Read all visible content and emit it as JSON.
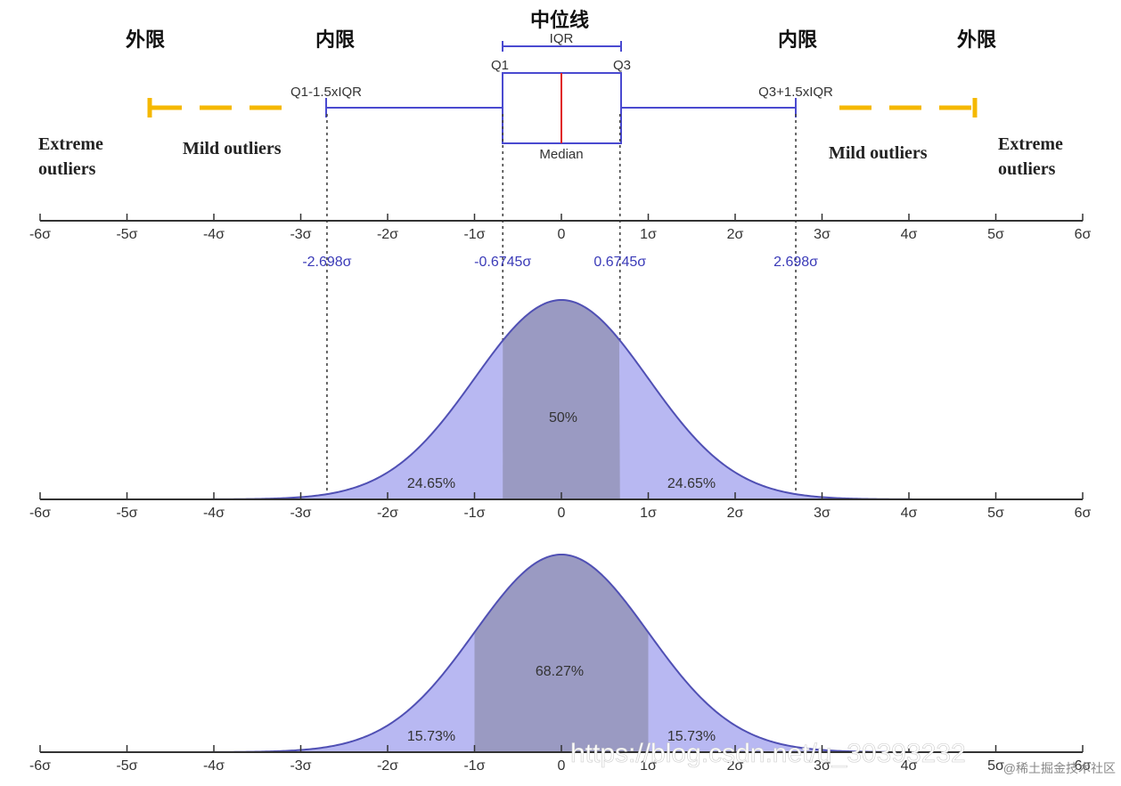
{
  "labels": {
    "median_zh": "中位线",
    "outer_left_zh": "外限",
    "inner_left_zh": "内限",
    "inner_right_zh": "内限",
    "outer_right_zh": "外限",
    "iqr": "IQR",
    "q1": "Q1",
    "q3": "Q3",
    "median": "Median",
    "lower_fence": "Q1-1.5xIQR",
    "upper_fence": "Q3+1.5xIQR",
    "extreme_left": [
      "Extreme",
      "outliers"
    ],
    "mild_left": "Mild outliers",
    "mild_right": "Mild outliers",
    "extreme_right": [
      "Extreme",
      "outliers"
    ]
  },
  "axis": {
    "ticks": [
      -6,
      -5,
      -4,
      -3,
      -2,
      -1,
      0,
      1,
      2,
      3,
      4,
      5,
      6
    ],
    "tick_labels": [
      "-6σ",
      "-5σ",
      "-4σ",
      "-3σ",
      "-2σ",
      "-1σ",
      "0",
      "1σ",
      "2σ",
      "3σ",
      "4σ",
      "5σ",
      "6σ"
    ],
    "markers": [
      {
        "value": -2.698,
        "label": "-2.698σ"
      },
      {
        "value": -0.6745,
        "label": "-0.6745σ"
      },
      {
        "value": 0.6745,
        "label": "0.6745σ"
      },
      {
        "value": 2.698,
        "label": "2.698σ"
      }
    ]
  },
  "curves": [
    {
      "shade_from": -0.6745,
      "shade_to": 0.6745,
      "tail_from": -2.698,
      "tail_to": 2.698,
      "center_label": "50%",
      "left_label": "24.65%",
      "right_label": "24.65%"
    },
    {
      "shade_from": -1,
      "shade_to": 1,
      "center_label": "68.27%",
      "left_label": "15.73%",
      "right_label": "15.73%"
    }
  ],
  "colors": {
    "curve_fill": "#b8b8f2",
    "center_fill": "#9a9ac2",
    "curve_line": "#5050b4",
    "whisker": "#4a4ad0",
    "box": "#4a4ad0",
    "median_line": "#e02020",
    "outlier_dash": "#f5b800",
    "axis": "#333333",
    "dotted": "#444444"
  },
  "watermark": {
    "url": "https://blog.csdn.net/u_30393232",
    "source": "@稀土掘金技术社区"
  }
}
